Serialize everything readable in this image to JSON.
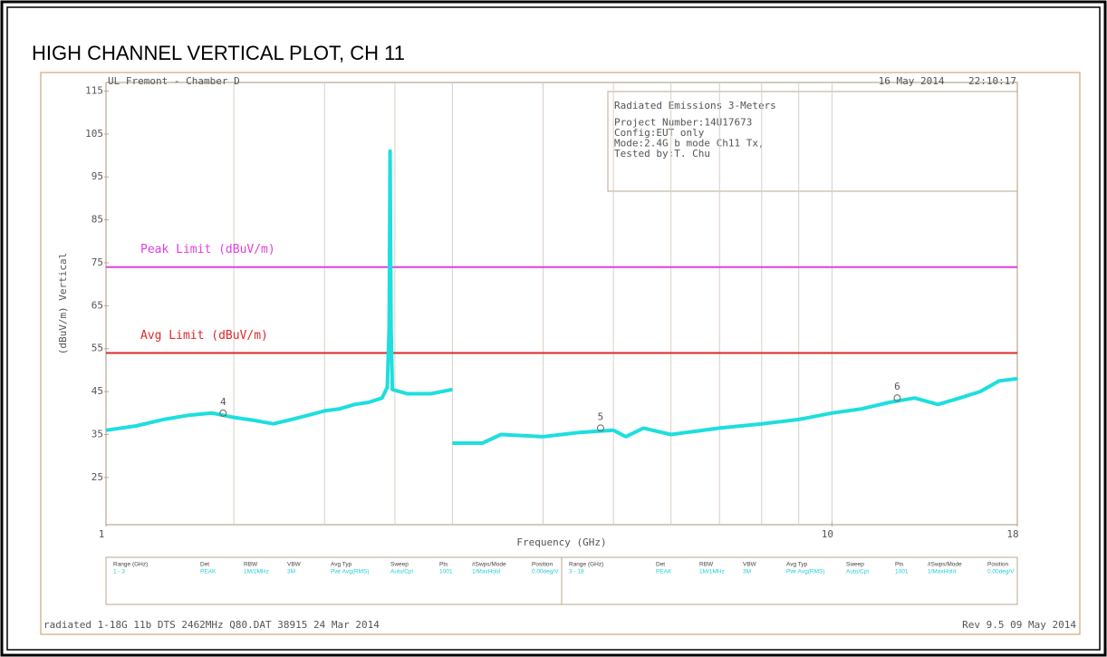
{
  "chart_data": {
    "type": "line",
    "page_title": "HIGH CHANNEL VERTICAL PLOT, CH 11",
    "header_left": "UL Fremont - Chamber D",
    "header_right": "16 May 2014    22:10:17",
    "info": [
      "Radiated Emissions 3-Meters",
      "Project Number:14U17673",
      "Config:EUT only",
      "Mode:2.4G b mode Ch11 Tx,",
      "Tested by:T. Chu"
    ],
    "xlabel": "Frequency (GHz)",
    "ylabel": "(dBuV/m) Vertical",
    "xlog": true,
    "xlim": [
      1,
      18
    ],
    "xticks": [
      1,
      10,
      18
    ],
    "xgrid": [
      1.5,
      2,
      2.5,
      3,
      4,
      5,
      6,
      7,
      8,
      9,
      10
    ],
    "ylim": [
      14,
      117
    ],
    "yticks": [
      25,
      35,
      45,
      55,
      65,
      75,
      85,
      95,
      105,
      115
    ],
    "series": [
      {
        "name": "Trace",
        "color": "#1fdede",
        "x": [
          1.0,
          1.1,
          1.2,
          1.3,
          1.4,
          1.5,
          1.6,
          1.7,
          1.8,
          1.9,
          2.0,
          2.1,
          2.2,
          2.3,
          2.4,
          2.44,
          2.455,
          2.462,
          2.47,
          2.48,
          2.6,
          2.8,
          3.0,
          null,
          3.0,
          3.3,
          3.5,
          4.0,
          4.5,
          5.0,
          5.2,
          5.5,
          6.0,
          7.0,
          8.0,
          9.0,
          10,
          11,
          12,
          13,
          14,
          15,
          16,
          17,
          18
        ],
        "values": [
          36,
          37,
          38.5,
          39.5,
          40,
          39,
          38.3,
          37.5,
          38.5,
          39.5,
          40.5,
          41,
          42,
          42.5,
          43.5,
          46,
          60,
          101,
          60,
          45.5,
          44.5,
          44.5,
          45.5,
          null,
          33,
          33,
          35,
          34.5,
          35.5,
          36,
          34.5,
          36.5,
          35,
          36.5,
          37.5,
          38.5,
          40,
          41,
          42.5,
          43.5,
          42,
          43.5,
          45,
          47.5,
          48
        ]
      }
    ],
    "limits": [
      {
        "name": "Peak Limit (dBuV/m)",
        "value": 74,
        "color": "#e040e0"
      },
      {
        "name": "Avg Limit (dBuV/m)",
        "value": 54,
        "color": "#e02828"
      }
    ],
    "markers": [
      {
        "label": "4",
        "x": 1.45,
        "y": 40
      },
      {
        "label": "5",
        "x": 4.8,
        "y": 36.5
      },
      {
        "label": "6",
        "x": 12.3,
        "y": 43.5
      }
    ],
    "table": {
      "columns": [
        "Range (GHz)",
        "Det",
        "RBW",
        "VBW",
        "Avg Typ",
        "Sweep",
        "Pts",
        "#Swps/Mode",
        "Position"
      ],
      "rows": [
        [
          "1 - 3",
          "PEAK",
          "1M/1MHz",
          "3M",
          "Pwr Avg(RMS)",
          "Auto/Cpl",
          "1001",
          "1/MaxHold",
          "0.00deg/V"
        ],
        [
          "3 - 18",
          "PEAK",
          "1M/1MHz",
          "3M",
          "Pwr Avg(RMS)",
          "Auto/Cpl",
          "1001",
          "1/MaxHold",
          "0.00deg/V"
        ]
      ]
    },
    "footer_left": "radiated 1-18G 11b DTS 2462MHz Q80.DAT 38915 24 Mar 2014",
    "footer_right": "Rev 9.5 09 May 2014"
  }
}
